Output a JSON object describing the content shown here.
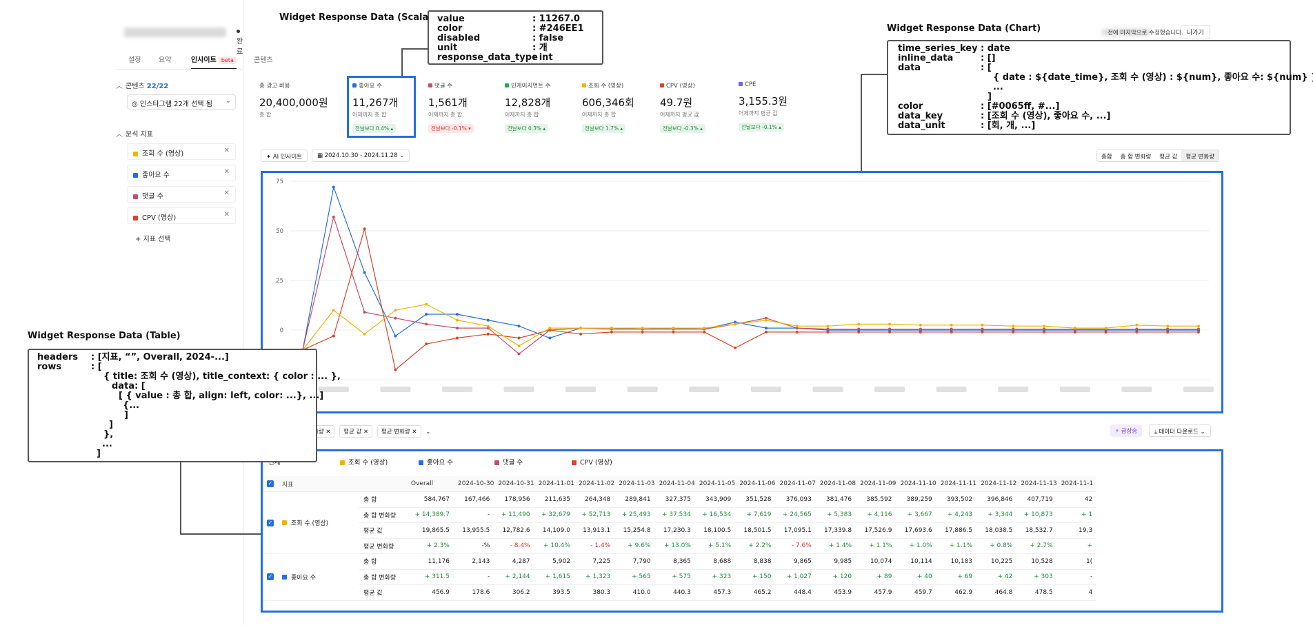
{
  "app": {
    "status_label": "완료",
    "edit_note": "전에 마지막으로 수정했습니다.",
    "exit_label": "나가기"
  },
  "tabs": [
    {
      "label": "설정"
    },
    {
      "label": "요약"
    },
    {
      "label": "인사이트",
      "badge": "beta"
    },
    {
      "label": "콘텐츠"
    }
  ],
  "left_panel": {
    "content_title": "콘텐츠",
    "content_count": "22/22",
    "content_select": "인스타그램 22개 선택 됨",
    "metrics_title": "분석 지표",
    "metrics": [
      {
        "label": "조회 수 (영상)",
        "color": "#F0B400"
      },
      {
        "label": "좋아요 수",
        "color": "#246EE1"
      },
      {
        "label": "댓글 수",
        "color": "#C0506A"
      },
      {
        "label": "CPV (영상)",
        "color": "#D9442B"
      }
    ],
    "add_metric": "+ 지표 선택"
  },
  "cards": [
    {
      "label": "총 광고 비용",
      "value": "20,400,000원",
      "sub": "총 합",
      "change": "",
      "dir": "",
      "color": ""
    },
    {
      "label": "좋아요 수",
      "value": "11,267개",
      "sub": "어제까지 총 합",
      "change": "전날보다 0.4%",
      "dir": "up",
      "color": "#246EE1"
    },
    {
      "label": "댓글 수",
      "value": "1,561개",
      "sub": "어제까지 총 합",
      "change": "전날보다 -0.1%",
      "dir": "down",
      "color": "#C0506A"
    },
    {
      "label": "인게이지먼트 수",
      "value": "12,828개",
      "sub": "어제까지 총 합",
      "change": "전날보다 0.3%",
      "dir": "up",
      "color": "#2BA84A"
    },
    {
      "label": "조회 수 (영상)",
      "value": "606,346회",
      "sub": "어제까지 총 합",
      "change": "전날보다 1.7%",
      "dir": "up",
      "color": "#F0B400"
    },
    {
      "label": "CPV (영상)",
      "value": "49.7원",
      "sub": "어제까지 평균 값",
      "change": "전날보다 -0.3%",
      "dir": "up",
      "color": "#D9442B"
    },
    {
      "label": "CPE",
      "value": "3,155.3원",
      "sub": "어제까지 평균 값",
      "change": "전날보다 -0.1%",
      "dir": "up",
      "color": "#7B5CE0"
    }
  ],
  "toolbar": {
    "ai_label": "AI 인사이트",
    "date_range": "2024.10.30 - 2024.11.28",
    "view_options": [
      "총합",
      "총 합 변화량",
      "평균 값",
      "평균 변화량"
    ],
    "active_view": "평균 변화량"
  },
  "chart_data": {
    "type": "line",
    "yticks": [
      75,
      50,
      25,
      0
    ],
    "ylim": [
      -25,
      75
    ],
    "x_count": 30,
    "series": [
      {
        "color": "#246EE1",
        "values": [
          -10,
          72,
          29,
          -3,
          8,
          8,
          5,
          2,
          -4,
          1,
          1,
          0.5,
          1,
          0.5,
          4,
          1,
          1,
          0,
          0,
          0,
          0,
          0,
          0,
          0,
          0,
          0,
          0,
          0,
          0,
          0
        ]
      },
      {
        "color": "#C0506A",
        "values": [
          -10,
          57,
          9,
          6,
          3,
          1,
          1,
          -12,
          0,
          1,
          0.5,
          0.5,
          0.5,
          0.5,
          3,
          6,
          1,
          0.5,
          0.5,
          0.5,
          0.5,
          0.5,
          0.5,
          0.5,
          0.5,
          0.5,
          0.5,
          0.5,
          0.5,
          0.5
        ]
      },
      {
        "color": "#D9442B",
        "values": [
          -10,
          -3,
          51,
          -20,
          -7,
          -4,
          -2,
          -4,
          0,
          -2,
          -1,
          -1,
          -1,
          -1,
          -9,
          -1,
          -1,
          -1,
          -1,
          -1,
          -1,
          -1,
          -1,
          -1,
          -1,
          -1,
          -1,
          -1,
          -1,
          -1
        ]
      },
      {
        "color": "#F0B400",
        "values": [
          -10,
          10,
          -2,
          10,
          13,
          5,
          2,
          -8,
          1,
          1,
          1,
          1,
          1,
          1,
          3,
          5,
          2,
          2,
          3,
          3,
          2.5,
          2.5,
          2.5,
          2,
          2,
          1,
          1,
          2.5,
          2,
          2
        ]
      }
    ]
  },
  "table_toolbar": {
    "chips": [
      "화량",
      "평균 값",
      "평균 변화량"
    ],
    "spike_label": "급상승",
    "download_label": "데이터 다운로드"
  },
  "table": {
    "tabs": [
      "전체",
      "조회 수 (영상)",
      "좋아요 수",
      "댓글 수",
      "CPV (영상)"
    ],
    "tab_colors": [
      "",
      "#F0B400",
      "#246EE1",
      "#C0506A",
      "#D9442B"
    ],
    "header_metric": "지표",
    "headers": [
      "Overall",
      "2024-10-30",
      "2024-10-31",
      "2024-11-01",
      "2024-11-02",
      "2024-11-03",
      "2024-11-04",
      "2024-11-05",
      "2024-11-06",
      "2024-11-07",
      "2024-11-08",
      "2024-11-09",
      "2024-11-10",
      "2024-11-11",
      "2024-11-12",
      "2024-11-13",
      "2024-11-1"
    ],
    "groups": [
      {
        "title": "조회 수 (영상)",
        "color": "#F0B400",
        "rows": [
          {
            "label": "총 합",
            "cells": [
              "584,767",
              "167,466",
              "178,956",
              "211,635",
              "264,348",
              "289,841",
              "327,375",
              "343,909",
              "351,528",
              "376,093",
              "381,476",
              "385,592",
              "389,259",
              "393,502",
              "396,846",
              "407,719",
              "42"
            ]
          },
          {
            "label": "총 합 변화량",
            "cells": [
              "+ 14,389.7",
              "-",
              "+ 11,490",
              "+ 32,679",
              "+ 52,713",
              "+ 25,493",
              "+ 37,534",
              "+ 16,534",
              "+ 7,619",
              "+ 24,565",
              "+ 5,383",
              "+ 4,116",
              "+ 3,667",
              "+ 4,243",
              "+ 3,344",
              "+ 10,873",
              "+ 1"
            ]
          },
          {
            "label": "평균 값",
            "cells": [
              "19,865.5",
              "13,955.5",
              "12,782.6",
              "14,109.0",
              "13,913.1",
              "15,254.8",
              "17,230.3",
              "18,100.5",
              "18,501.5",
              "17,095.1",
              "17,339.8",
              "17,526.9",
              "17,693.6",
              "17,886.5",
              "18,038.5",
              "18,532.7",
              "19,3"
            ]
          },
          {
            "label": "평균 변화량",
            "cells": [
              "+ 2.3%",
              "-%",
              "- 8.4%",
              "+ 10.4%",
              "- 1.4%",
              "+ 9.6%",
              "+ 13.0%",
              "+ 5.1%",
              "+ 2.2%",
              "- 7.6%",
              "+ 1.4%",
              "+ 1.1%",
              "+ 1.0%",
              "+ 1.1%",
              "+ 0.8%",
              "+ 2.7%",
              "+"
            ]
          }
        ]
      },
      {
        "title": "좋아요 수",
        "color": "#246EE1",
        "rows": [
          {
            "label": "총 합",
            "cells": [
              "11,176",
              "2,143",
              "4,287",
              "5,902",
              "7,225",
              "7,790",
              "8,365",
              "8,688",
              "8,838",
              "9,865",
              "9,985",
              "10,074",
              "10,114",
              "10,183",
              "10,225",
              "10,528",
              "1("
            ]
          },
          {
            "label": "총 합 변화량",
            "cells": [
              "+ 311.5",
              "-",
              "+ 2,144",
              "+ 1,615",
              "+ 1,323",
              "+ 565",
              "+ 575",
              "+ 323",
              "+ 150",
              "+ 1,027",
              "+ 120",
              "+ 89",
              "+ 40",
              "+ 69",
              "+ 42",
              "+ 303",
              "-"
            ]
          },
          {
            "label": "평균 값",
            "cells": [
              "456.9",
              "178.6",
              "306.2",
              "393.5",
              "380.3",
              "410.0",
              "440.3",
              "457.3",
              "465.2",
              "448.4",
              "453.9",
              "457.9",
              "459.7",
              "462.9",
              "464.8",
              "478.5",
              "4"
            ]
          }
        ]
      }
    ]
  },
  "annotations": {
    "scalar": {
      "title": "Widget Response Data (Scalar)",
      "rows": [
        {
          "k": "value",
          "v": ": 11267.0"
        },
        {
          "k": "color",
          "v": ": #246EE1"
        },
        {
          "k": "disabled",
          "v": ": false"
        },
        {
          "k": "unit",
          "v": ": 개"
        },
        {
          "k": "response_data_type",
          "v": ": int"
        }
      ]
    },
    "chart": {
      "title": "Widget Response Data (Chart)",
      "rows": [
        {
          "k": "time_series_key",
          "v": ": date"
        },
        {
          "k": "inline_data",
          "v": ": []"
        },
        {
          "k": "data",
          "v": ": ["
        },
        {
          "k": "",
          "v": "{ date : ${date_time}, 조회 수 (영상) : ${num}, 좋아요 수: ${num} },"
        },
        {
          "k": "",
          "v": "..."
        },
        {
          "k": "",
          "v": "]"
        },
        {
          "k": "color",
          "v": ": [#0065ff, #...]"
        },
        {
          "k": "data_key",
          "v": ": [조회 수 (영상), 좋아요 수, ...]"
        },
        {
          "k": "data_unit",
          "v": ": [회, 개, ...]"
        }
      ]
    },
    "table": {
      "title": "Widget Response Data (Table)",
      "rows": [
        {
          "k": "headers",
          "v": ": [지표, “”, Overall, 2024-...]"
        },
        {
          "k": "rows",
          "v": ": ["
        },
        {
          "k": "",
          "v": "{ title: 조회 수 (영상), title_context: { color : ... },"
        },
        {
          "k": "",
          "v": "data: ["
        },
        {
          "k": "",
          "v": "[ { value : 총 합, align: left, color: ...}, ...]"
        },
        {
          "k": "",
          "v": "{..."
        },
        {
          "k": "",
          "v": "]"
        },
        {
          "k": "",
          "v": "]"
        },
        {
          "k": "",
          "v": "},"
        },
        {
          "k": "",
          "v": "..."
        },
        {
          "k": "",
          "v": "]"
        }
      ]
    }
  }
}
